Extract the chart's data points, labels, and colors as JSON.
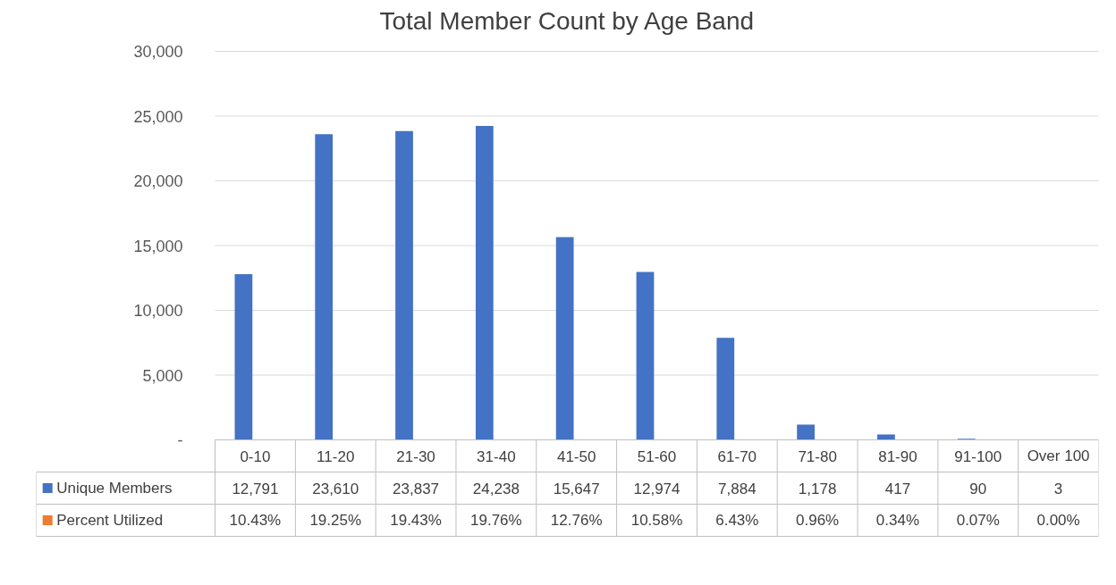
{
  "chart_data": {
    "type": "bar",
    "title": "Total Member Count by Age Band",
    "categories": [
      "0-10",
      "11-20",
      "21-30",
      "31-40",
      "41-50",
      "51-60",
      "61-70",
      "71-80",
      "81-90",
      "91-100",
      "Over 100"
    ],
    "series": [
      {
        "name": "Unique Members",
        "color": "#4472c4",
        "values": [
          12791,
          23610,
          23837,
          24238,
          15647,
          12974,
          7884,
          1178,
          417,
          90,
          3
        ],
        "value_labels": [
          "12,791",
          "23,610",
          "23,837",
          "24,238",
          "15,647",
          "12,974",
          "7,884",
          "1,178",
          "417",
          "90",
          "3"
        ]
      },
      {
        "name": "Percent Utilized",
        "color": "#ed7d31",
        "values": [
          10.43,
          19.25,
          19.43,
          19.76,
          12.76,
          10.58,
          6.43,
          0.96,
          0.34,
          0.07,
          0.0
        ],
        "value_labels": [
          "10.43%",
          "19.25%",
          "19.43%",
          "19.76%",
          "12.76%",
          "10.58%",
          "6.43%",
          "0.96%",
          "0.34%",
          "0.07%",
          "0.00%"
        ]
      }
    ],
    "ylim": [
      0,
      30000
    ],
    "yticks": [
      {
        "value": 0,
        "label": "-"
      },
      {
        "value": 5000,
        "label": "5,000"
      },
      {
        "value": 10000,
        "label": "10,000"
      },
      {
        "value": 15000,
        "label": "15,000"
      },
      {
        "value": 20000,
        "label": "20,000"
      },
      {
        "value": 25000,
        "label": "25,000"
      },
      {
        "value": 30000,
        "label": "30,000"
      }
    ],
    "grid": "y",
    "legend": "bottom left"
  }
}
